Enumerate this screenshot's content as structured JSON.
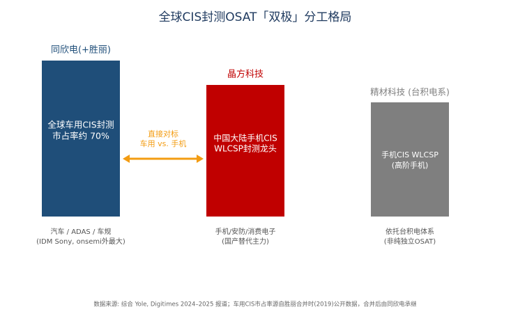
{
  "title": "全球CIS封测OSAT「双极」分工格局",
  "columns": [
    {
      "name": "同欣电(+胜丽)",
      "box_text": [
        "全球车用CIS封测",
        "市占率约 70%"
      ],
      "caption": [
        "汽车 / ADAS / 车规",
        "(IDM Sony, onsemi外最大)"
      ]
    },
    {
      "name": "晶方科技",
      "box_text": [
        "中国大陆手机CIS",
        "WLCSP封测龙头"
      ],
      "caption": [
        "手机/安防/消费电子",
        "(国产替代主力)"
      ]
    },
    {
      "name": "精材科技 (台积电系)",
      "box_text": [
        "手机CIS WLCSP",
        "(高阶手机)"
      ],
      "caption": [
        "依托台积电体系",
        "(非纯独立OSAT)"
      ]
    }
  ],
  "comparison": [
    "直接对标",
    "车用 vs. 手机"
  ],
  "footnote": "数据来源: 综合 Yole, Digitimes 2024–2025 报道；车用CIS市占率源自胜丽合并时(2019)公开数据，合并后由同欣电承继"
}
